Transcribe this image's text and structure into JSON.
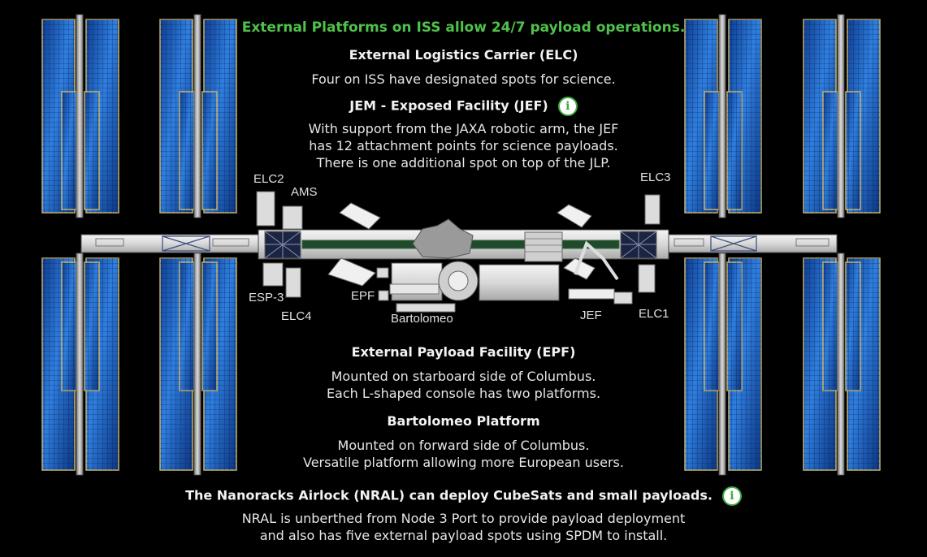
{
  "title": "External Platforms on ISS allow 24/7 payload operations.",
  "elc": {
    "heading": "External Logistics Carrier (ELC)",
    "body": [
      "Four on ISS have designated spots for science."
    ]
  },
  "jef": {
    "heading": "JEM - Exposed Facility (JEF)",
    "body": [
      "With support from the JAXA robotic arm, the JEF",
      "has 12 attachment points for science payloads.",
      "There is one additional spot on top of the JLP."
    ]
  },
  "epf": {
    "heading": "External Payload Facility (EPF)",
    "body": [
      "Mounted on starboard side of Columbus.",
      "Each  L-shaped console has two platforms."
    ]
  },
  "bartolomeo": {
    "heading": "Bartolomeo Platform",
    "body": [
      "Mounted on forward side of Columbus.",
      "Versatile platform allowing more European users."
    ]
  },
  "nral": {
    "heading": "The Nanoracks Airlock (NRAL) can deploy CubeSats and small payloads.",
    "body": [
      "NRAL is unberthed from Node 3 Port to provide payload deployment",
      "and also has five external payload spots using SPDM to install."
    ]
  },
  "info_icon": {
    "glyph": "i",
    "name": "info-icon"
  },
  "labels": {
    "elc2": "ELC2",
    "ams": "AMS",
    "esp3": "ESP-3",
    "elc4": "ELC4",
    "epf": "EPF",
    "bartolomeo": "Bartolomeo",
    "jef": "JEF",
    "elc3": "ELC3",
    "elc1": "ELC1"
  },
  "colors": {
    "accent_green": "#4fc24a",
    "panel_blue": "#1f5fbf",
    "panel_gold": "#c9b46a",
    "background": "#000000"
  }
}
